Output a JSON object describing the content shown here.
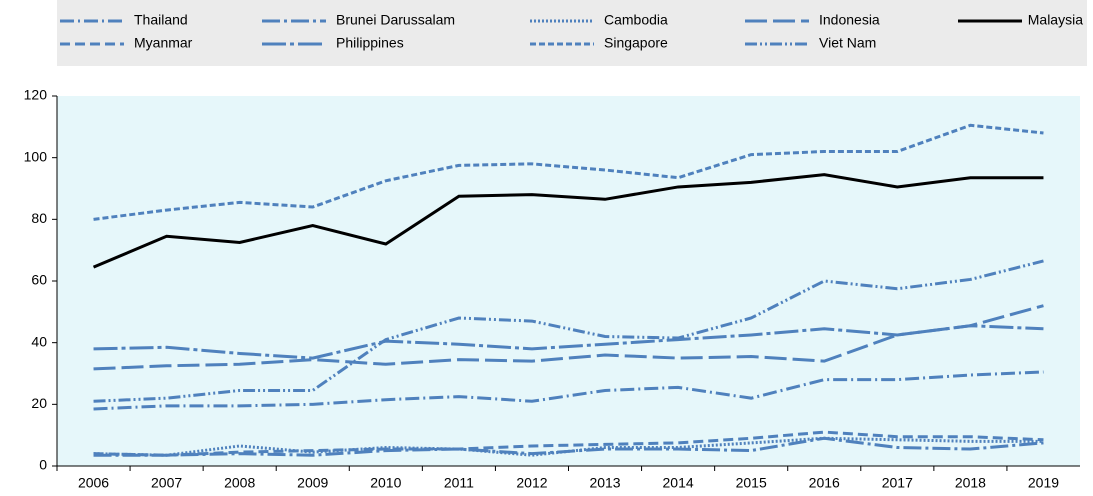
{
  "chart_data": {
    "type": "line",
    "categories": [
      "2006",
      "2007",
      "2008",
      "2009",
      "2010",
      "2011",
      "2012",
      "2013",
      "2014",
      "2015",
      "2016",
      "2017",
      "2018",
      "2019"
    ],
    "ylim": [
      0,
      120
    ],
    "yticks": [
      0,
      20,
      40,
      60,
      80,
      100,
      120
    ],
    "series": [
      {
        "name": "Thailand",
        "color": "#4f81bd",
        "dash": "14,4,2,4",
        "values": [
          18.5,
          19.5,
          19.5,
          20,
          21.5,
          22.5,
          21,
          24.5,
          25.5,
          22,
          28,
          28,
          29.5,
          30.5
        ]
      },
      {
        "name": "Brunei Darussalam",
        "color": "#4f81bd",
        "dash": "18,4,3,4",
        "values": [
          3.5,
          3.5,
          4,
          3.5,
          5,
          5.5,
          4,
          5.5,
          5.5,
          5,
          9,
          6,
          5.5,
          7.5
        ]
      },
      {
        "name": "Cambodia",
        "color": "#4f81bd",
        "dash": "2,2",
        "values": [
          4,
          3.5,
          6.5,
          4.5,
          6,
          5.5,
          3.5,
          6,
          6,
          7.5,
          9,
          8.5,
          8,
          8
        ]
      },
      {
        "name": "Indonesia",
        "color": "#4f81bd",
        "dash": "22,6",
        "values": [
          31.5,
          32.5,
          33,
          34.5,
          33,
          34.5,
          34,
          36,
          35,
          35.5,
          34,
          42.5,
          45.5,
          52
        ]
      },
      {
        "name": "Malaysia",
        "color": "#000000",
        "dash": "none",
        "values": [
          64.5,
          74.5,
          72.5,
          78,
          72,
          87.5,
          88,
          86.5,
          90.5,
          92,
          94.5,
          90.5,
          93.5,
          93.5
        ]
      },
      {
        "name": "Myanmar",
        "color": "#4f81bd",
        "dash": "10,5",
        "values": [
          4,
          3.5,
          4.5,
          5,
          5.5,
          5.5,
          6.5,
          7,
          7.5,
          9,
          11,
          9.5,
          9.5,
          8.5
        ]
      },
      {
        "name": "Philippines",
        "color": "#4f81bd",
        "dash": "24,4,4,4",
        "values": [
          38,
          38.5,
          36.5,
          35,
          40.5,
          39.5,
          38,
          39.5,
          41,
          42.5,
          44.5,
          42.5,
          45.5,
          44.5
        ]
      },
      {
        "name": "Singapore",
        "color": "#4f81bd",
        "dash": "6,3",
        "values": [
          80,
          83,
          85.5,
          84,
          92.5,
          97.5,
          98,
          96,
          93.5,
          101,
          102,
          102,
          110.5,
          108
        ]
      },
      {
        "name": "Viet Nam",
        "color": "#4f81bd",
        "dash": "12,3,2,3,2,3",
        "values": [
          21,
          22,
          24.5,
          24.5,
          41,
          48,
          47,
          42,
          41.5,
          48,
          60,
          57.5,
          60.5,
          66.5
        ]
      }
    ]
  }
}
